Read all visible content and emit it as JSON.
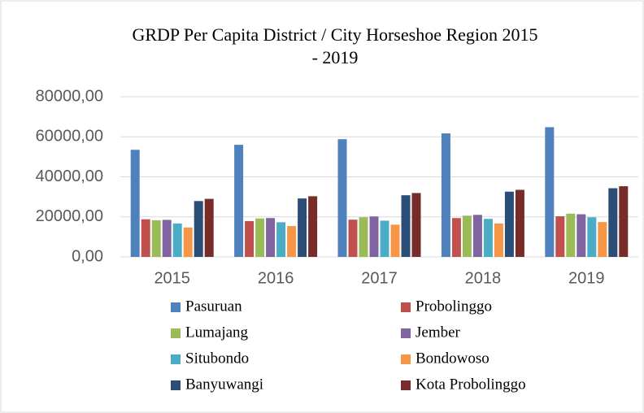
{
  "chart_data": {
    "type": "bar",
    "title": [
      "GRDP Per Capita District / City Horseshoe Region 2015",
      "- 2019"
    ],
    "categories": [
      "2015",
      "2016",
      "2017",
      "2018",
      "2019"
    ],
    "series": [
      {
        "name": "Pasuruan",
        "color": "#4f81bd",
        "values": [
          53500,
          56000,
          58800,
          61700,
          64800
        ]
      },
      {
        "name": "Probolinggo",
        "color": "#c0504d",
        "values": [
          18800,
          17900,
          18600,
          19400,
          20300
        ]
      },
      {
        "name": "Lumajang",
        "color": "#9bbb59",
        "values": [
          18300,
          19200,
          19800,
          20600,
          21600
        ]
      },
      {
        "name": "Jember",
        "color": "#8064a2",
        "values": [
          18500,
          19400,
          20200,
          21000,
          21300
        ]
      },
      {
        "name": "Situbondo",
        "color": "#4bacc6",
        "values": [
          16700,
          17300,
          18100,
          19000,
          19800
        ]
      },
      {
        "name": "Bondowoso",
        "color": "#f79646",
        "values": [
          14700,
          15400,
          16100,
          16700,
          17400
        ]
      },
      {
        "name": "Banyuwangi",
        "color": "#2c4d75",
        "values": [
          27900,
          29200,
          30800,
          32600,
          34300
        ]
      },
      {
        "name": "Kota Probolinggo",
        "color": "#772c2a",
        "values": [
          29000,
          30300,
          31900,
          33500,
          35300
        ]
      }
    ],
    "ylim": [
      0,
      80000
    ],
    "yticks": [
      {
        "value": 0,
        "label": "0,00"
      },
      {
        "value": 20000,
        "label": "20000,00"
      },
      {
        "value": 40000,
        "label": "40000,00"
      },
      {
        "value": 60000,
        "label": "60000,00"
      },
      {
        "value": 80000,
        "label": "80000,00"
      }
    ],
    "grid": true,
    "legend": "bottom"
  }
}
